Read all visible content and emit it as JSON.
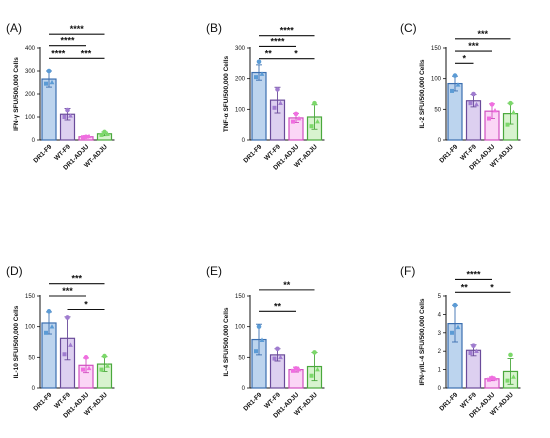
{
  "colors": {
    "DR1-F9": {
      "fill": "#bcd4ee",
      "stroke": "#3b6fb0",
      "dot": "#5b9bd5"
    },
    "WT-F9": {
      "fill": "#ddd0f0",
      "stroke": "#6a4b9a",
      "dot": "#a07cd0"
    },
    "DR1-ADJU": {
      "fill": "#fbd6f6",
      "stroke": "#d14fc0",
      "dot": "#f06ee0"
    },
    "WT-ADJU": {
      "fill": "#d8f3cf",
      "stroke": "#4aa83c",
      "dot": "#7cd86a"
    }
  },
  "chart_data": [
    {
      "type": "bar",
      "panel": "(A)",
      "ylabel": "IFN-γ SFU/500,000 Cells",
      "categories": [
        "DR1-F9",
        "WT-F9",
        "DR1-ADJU",
        "WT-ADJU"
      ],
      "values": [
        265,
        112,
        14,
        27
      ],
      "errors": [
        35,
        25,
        5,
        8
      ],
      "points": [
        [
          300,
          245,
          250
        ],
        [
          130,
          100,
          105
        ],
        [
          14,
          12,
          16
        ],
        [
          35,
          22,
          25
        ]
      ],
      "ylim": [
        0,
        400
      ],
      "yticks": [
        0,
        100,
        200,
        300,
        400
      ],
      "significance": [
        {
          "from": 0,
          "to": 3,
          "label": "****",
          "y": 460
        },
        {
          "from": 0,
          "to": 2,
          "label": "****",
          "y": 410
        },
        {
          "from": 0,
          "to": 1,
          "label": "****",
          "y": 355
        },
        {
          "from": 1,
          "to": 3,
          "label": "***",
          "y": 355
        }
      ]
    },
    {
      "type": "bar",
      "panel": "(B)",
      "ylabel": "TNF-α SFU/500,000 Cells",
      "categories": [
        "DR1-F9",
        "WT-F9",
        "DR1-ADJU",
        "WT-ADJU"
      ],
      "values": [
        220,
        130,
        72,
        75
      ],
      "errors": [
        25,
        42,
        15,
        40
      ],
      "points": [
        [
          255,
          205,
          215
        ],
        [
          165,
          105,
          120
        ],
        [
          85,
          60,
          70
        ],
        [
          120,
          45,
          60
        ]
      ],
      "ylim": [
        0,
        300
      ],
      "yticks": [
        0,
        100,
        200,
        300
      ],
      "significance": [
        {
          "from": 0,
          "to": 3,
          "label": "****",
          "y": 340
        },
        {
          "from": 0,
          "to": 2,
          "label": "****",
          "y": 305
        },
        {
          "from": 0,
          "to": 1,
          "label": "**",
          "y": 265
        },
        {
          "from": 1,
          "to": 3,
          "label": "*",
          "y": 265
        }
      ]
    },
    {
      "type": "bar",
      "panel": "(C)",
      "ylabel": "IL-2 SFU/500,000 Cells",
      "categories": [
        "DR1-F9",
        "WT-F9",
        "DR1-ADJU",
        "WT-ADJU"
      ],
      "values": [
        92,
        64,
        47,
        43
      ],
      "errors": [
        12,
        10,
        12,
        17
      ],
      "points": [
        [
          105,
          80,
          90
        ],
        [
          75,
          60,
          58
        ],
        [
          58,
          35,
          48
        ],
        [
          60,
          25,
          45
        ]
      ],
      "ylim": [
        0,
        150
      ],
      "yticks": [
        0,
        50,
        100,
        150
      ],
      "significance": [
        {
          "from": 0,
          "to": 3,
          "label": "***",
          "y": 165
        },
        {
          "from": 0,
          "to": 2,
          "label": "***",
          "y": 145
        },
        {
          "from": 0,
          "to": 1,
          "label": "*",
          "y": 125
        }
      ]
    },
    {
      "type": "bar",
      "panel": "(D)",
      "ylabel": "IL-10 SFU/500,000 Cells",
      "categories": [
        "DR1-F9",
        "WT-F9",
        "DR1-ADJU",
        "WT-ADJU"
      ],
      "values": [
        106,
        81,
        37,
        39
      ],
      "errors": [
        18,
        35,
        12,
        12
      ],
      "points": [
        [
          125,
          90,
          100
        ],
        [
          115,
          55,
          70
        ],
        [
          50,
          30,
          32
        ],
        [
          52,
          30,
          36
        ]
      ],
      "ylim": [
        0,
        150
      ],
      "yticks": [
        0,
        50,
        100,
        150
      ],
      "significance": [
        {
          "from": 0,
          "to": 3,
          "label": "***",
          "y": 170
        },
        {
          "from": 0,
          "to": 2,
          "label": "***",
          "y": 150
        },
        {
          "from": 1,
          "to": 3,
          "label": "*",
          "y": 128
        }
      ]
    },
    {
      "type": "bar",
      "panel": "(E)",
      "ylabel": "IL-4 SFU/500,000 Cells",
      "categories": [
        "DR1-F9",
        "WT-F9",
        "DR1-ADJU",
        "WT-ADJU"
      ],
      "values": [
        79,
        54,
        30,
        35
      ],
      "errors": [
        25,
        10,
        4,
        23
      ],
      "points": [
        [
          100,
          60,
          78
        ],
        [
          64,
          48,
          50
        ],
        [
          32,
          28,
          30
        ],
        [
          58,
          20,
          30
        ]
      ],
      "ylim": [
        0,
        150
      ],
      "yticks": [
        0,
        50,
        100,
        150
      ],
      "significance": [
        {
          "from": 0,
          "to": 3,
          "label": "**",
          "y": 160
        },
        {
          "from": 0,
          "to": 2,
          "label": "**",
          "y": 125
        }
      ]
    },
    {
      "type": "bar",
      "panel": "(F)",
      "ylabel": "IFN-γ/IL-4 SFU/500,000 Cells",
      "categories": [
        "DR1-F9",
        "WT-F9",
        "DR1-ADJU",
        "WT-ADJU"
      ],
      "values": [
        3.5,
        2.05,
        0.5,
        0.9
      ],
      "errors": [
        1.0,
        0.3,
        0.1,
        0.7
      ],
      "points": [
        [
          4.5,
          3.0,
          3.3
        ],
        [
          2.3,
          1.9,
          2.0
        ],
        [
          0.55,
          0.45,
          0.5
        ],
        [
          1.8,
          0.4,
          0.6
        ]
      ],
      "ylim": [
        0,
        5
      ],
      "yticks": [
        0,
        1,
        2,
        3,
        4,
        5
      ],
      "significance": [
        {
          "from": 0,
          "to": 2,
          "label": "****",
          "y": 5.9
        },
        {
          "from": 0,
          "to": 1,
          "label": "**",
          "y": 5.2
        },
        {
          "from": 1,
          "to": 3,
          "label": "*",
          "y": 5.2
        }
      ]
    }
  ]
}
